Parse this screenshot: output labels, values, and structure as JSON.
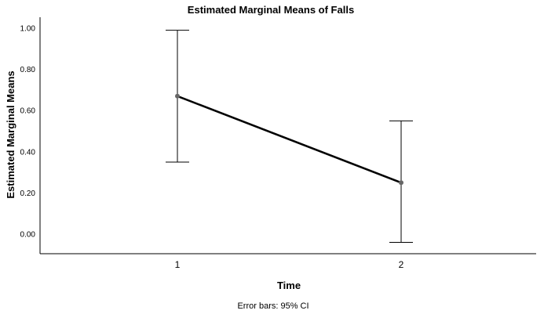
{
  "chart_data": {
    "type": "line",
    "title": "Estimated Marginal Means of Falls",
    "xlabel": "Time",
    "ylabel": "Estimated Marginal Means",
    "categories": [
      "1",
      "2"
    ],
    "series": [
      {
        "values": [
          0.67,
          0.25
        ],
        "ci_lower": [
          0.35,
          -0.04
        ],
        "ci_upper": [
          0.99,
          0.55
        ]
      }
    ],
    "yticks": [
      "0.00",
      "0.20",
      "0.40",
      "0.60",
      "0.80",
      "1.00"
    ],
    "ylim": [
      -0.1,
      1.05
    ],
    "grid": false,
    "footnote": "Error bars: 95% CI",
    "colors": {
      "line": "#000000",
      "marker": "#666666"
    }
  }
}
